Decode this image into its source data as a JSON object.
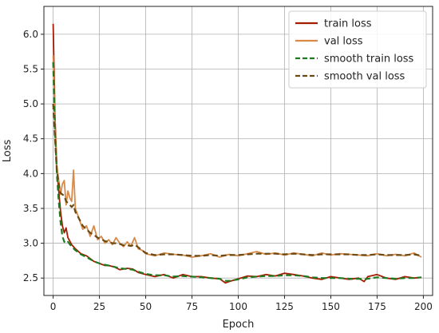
{
  "chart_data": {
    "type": "line",
    "title": "",
    "xlabel": "Epoch",
    "ylabel": "Loss",
    "xlim": [
      -5,
      205
    ],
    "ylim": [
      2.25,
      6.4
    ],
    "x_ticks": [
      0,
      25,
      50,
      75,
      100,
      125,
      150,
      175,
      200
    ],
    "y_ticks": [
      2.5,
      3.0,
      3.5,
      4.0,
      4.5,
      5.0,
      5.5,
      6.0
    ],
    "x_tick_labels": [
      "0",
      "25",
      "50",
      "75",
      "100",
      "125",
      "150",
      "175",
      "200"
    ],
    "y_tick_labels": [
      "2.5",
      "3.0",
      "3.5",
      "4.0",
      "4.5",
      "5.0",
      "5.5",
      "6.0"
    ],
    "grid": true,
    "legend_position": "top-right",
    "series": [
      {
        "name": "train loss",
        "color": "#a61c00",
        "style": "solid",
        "points": [
          [
            0,
            6.15
          ],
          [
            1,
            4.8
          ],
          [
            2,
            4.1
          ],
          [
            3,
            3.75
          ],
          [
            4,
            3.45
          ],
          [
            5,
            3.25
          ],
          [
            6,
            3.15
          ],
          [
            7,
            3.22
          ],
          [
            8,
            3.08
          ],
          [
            10,
            2.98
          ],
          [
            12,
            2.92
          ],
          [
            15,
            2.85
          ],
          [
            18,
            2.82
          ],
          [
            20,
            2.78
          ],
          [
            22,
            2.74
          ],
          [
            25,
            2.71
          ],
          [
            28,
            2.68
          ],
          [
            30,
            2.68
          ],
          [
            33,
            2.66
          ],
          [
            36,
            2.62
          ],
          [
            40,
            2.64
          ],
          [
            43,
            2.63
          ],
          [
            46,
            2.58
          ],
          [
            50,
            2.55
          ],
          [
            55,
            2.52
          ],
          [
            60,
            2.55
          ],
          [
            65,
            2.5
          ],
          [
            70,
            2.55
          ],
          [
            75,
            2.52
          ],
          [
            80,
            2.52
          ],
          [
            85,
            2.5
          ],
          [
            90,
            2.49
          ],
          [
            93,
            2.43
          ],
          [
            95,
            2.45
          ],
          [
            100,
            2.49
          ],
          [
            105,
            2.53
          ],
          [
            110,
            2.52
          ],
          [
            115,
            2.55
          ],
          [
            120,
            2.53
          ],
          [
            125,
            2.57
          ],
          [
            130,
            2.55
          ],
          [
            135,
            2.53
          ],
          [
            140,
            2.5
          ],
          [
            145,
            2.48
          ],
          [
            150,
            2.52
          ],
          [
            155,
            2.5
          ],
          [
            160,
            2.48
          ],
          [
            165,
            2.5
          ],
          [
            168,
            2.45
          ],
          [
            170,
            2.52
          ],
          [
            175,
            2.55
          ],
          [
            180,
            2.5
          ],
          [
            185,
            2.48
          ],
          [
            190,
            2.52
          ],
          [
            195,
            2.5
          ],
          [
            199,
            2.51
          ]
        ]
      },
      {
        "name": "val loss",
        "color": "#d78a4a",
        "style": "solid",
        "points": [
          [
            0,
            5.7
          ],
          [
            1,
            4.7
          ],
          [
            2,
            4.1
          ],
          [
            3,
            3.9
          ],
          [
            4,
            3.7
          ],
          [
            5,
            3.85
          ],
          [
            6,
            3.9
          ],
          [
            7,
            3.55
          ],
          [
            8,
            3.75
          ],
          [
            9,
            3.65
          ],
          [
            10,
            3.6
          ],
          [
            11,
            4.05
          ],
          [
            12,
            3.5
          ],
          [
            14,
            3.35
          ],
          [
            16,
            3.2
          ],
          [
            18,
            3.25
          ],
          [
            20,
            3.1
          ],
          [
            22,
            3.25
          ],
          [
            24,
            3.05
          ],
          [
            26,
            3.1
          ],
          [
            28,
            3.0
          ],
          [
            30,
            3.05
          ],
          [
            32,
            2.98
          ],
          [
            34,
            3.08
          ],
          [
            36,
            3.0
          ],
          [
            38,
            2.95
          ],
          [
            40,
            3.02
          ],
          [
            42,
            2.96
          ],
          [
            44,
            3.08
          ],
          [
            46,
            2.92
          ],
          [
            48,
            2.9
          ],
          [
            50,
            2.85
          ],
          [
            55,
            2.82
          ],
          [
            60,
            2.86
          ],
          [
            65,
            2.84
          ],
          [
            70,
            2.83
          ],
          [
            75,
            2.8
          ],
          [
            80,
            2.82
          ],
          [
            85,
            2.85
          ],
          [
            90,
            2.8
          ],
          [
            95,
            2.84
          ],
          [
            100,
            2.82
          ],
          [
            105,
            2.85
          ],
          [
            110,
            2.88
          ],
          [
            115,
            2.84
          ],
          [
            120,
            2.86
          ],
          [
            125,
            2.83
          ],
          [
            130,
            2.86
          ],
          [
            135,
            2.84
          ],
          [
            140,
            2.82
          ],
          [
            145,
            2.86
          ],
          [
            150,
            2.83
          ],
          [
            155,
            2.85
          ],
          [
            160,
            2.84
          ],
          [
            165,
            2.83
          ],
          [
            170,
            2.82
          ],
          [
            175,
            2.85
          ],
          [
            180,
            2.82
          ],
          [
            185,
            2.84
          ],
          [
            190,
            2.82
          ],
          [
            195,
            2.86
          ],
          [
            199,
            2.8
          ]
        ]
      },
      {
        "name": "smooth train loss",
        "color": "#1e7a1e",
        "style": "dashed",
        "points": [
          [
            0,
            5.6
          ],
          [
            1,
            4.6
          ],
          [
            2,
            4.0
          ],
          [
            3,
            3.6
          ],
          [
            4,
            3.3
          ],
          [
            5,
            3.1
          ],
          [
            6,
            3.02
          ],
          [
            7,
            3.0
          ],
          [
            8,
            3.02
          ],
          [
            10,
            2.95
          ],
          [
            12,
            2.9
          ],
          [
            15,
            2.84
          ],
          [
            18,
            2.8
          ],
          [
            20,
            2.77
          ],
          [
            22,
            2.74
          ],
          [
            25,
            2.71
          ],
          [
            28,
            2.69
          ],
          [
            30,
            2.68
          ],
          [
            33,
            2.66
          ],
          [
            36,
            2.64
          ],
          [
            40,
            2.63
          ],
          [
            43,
            2.62
          ],
          [
            46,
            2.59
          ],
          [
            50,
            2.56
          ],
          [
            55,
            2.54
          ],
          [
            60,
            2.54
          ],
          [
            65,
            2.52
          ],
          [
            70,
            2.53
          ],
          [
            75,
            2.52
          ],
          [
            80,
            2.51
          ],
          [
            85,
            2.5
          ],
          [
            90,
            2.49
          ],
          [
            93,
            2.46
          ],
          [
            95,
            2.46
          ],
          [
            100,
            2.48
          ],
          [
            105,
            2.51
          ],
          [
            110,
            2.52
          ],
          [
            115,
            2.53
          ],
          [
            120,
            2.53
          ],
          [
            125,
            2.54
          ],
          [
            130,
            2.54
          ],
          [
            135,
            2.53
          ],
          [
            140,
            2.51
          ],
          [
            145,
            2.5
          ],
          [
            150,
            2.5
          ],
          [
            155,
            2.5
          ],
          [
            160,
            2.49
          ],
          [
            165,
            2.49
          ],
          [
            168,
            2.48
          ],
          [
            170,
            2.49
          ],
          [
            175,
            2.51
          ],
          [
            180,
            2.5
          ],
          [
            185,
            2.49
          ],
          [
            190,
            2.5
          ],
          [
            195,
            2.5
          ],
          [
            199,
            2.51
          ]
        ]
      },
      {
        "name": "smooth val loss",
        "color": "#6b4a12",
        "style": "dashed",
        "points": [
          [
            0,
            5.0
          ],
          [
            1,
            4.5
          ],
          [
            2,
            4.05
          ],
          [
            3,
            3.85
          ],
          [
            4,
            3.72
          ],
          [
            5,
            3.7
          ],
          [
            6,
            3.68
          ],
          [
            7,
            3.6
          ],
          [
            8,
            3.58
          ],
          [
            9,
            3.55
          ],
          [
            10,
            3.52
          ],
          [
            11,
            3.55
          ],
          [
            12,
            3.45
          ],
          [
            14,
            3.35
          ],
          [
            16,
            3.25
          ],
          [
            18,
            3.2
          ],
          [
            20,
            3.15
          ],
          [
            22,
            3.12
          ],
          [
            24,
            3.08
          ],
          [
            26,
            3.06
          ],
          [
            28,
            3.03
          ],
          [
            30,
            3.02
          ],
          [
            32,
            3.0
          ],
          [
            34,
            3.0
          ],
          [
            36,
            2.99
          ],
          [
            38,
            2.97
          ],
          [
            40,
            2.97
          ],
          [
            42,
            2.96
          ],
          [
            44,
            2.98
          ],
          [
            46,
            2.94
          ],
          [
            48,
            2.9
          ],
          [
            50,
            2.86
          ],
          [
            55,
            2.83
          ],
          [
            60,
            2.84
          ],
          [
            65,
            2.84
          ],
          [
            70,
            2.83
          ],
          [
            75,
            2.82
          ],
          [
            80,
            2.82
          ],
          [
            85,
            2.83
          ],
          [
            90,
            2.82
          ],
          [
            95,
            2.83
          ],
          [
            100,
            2.83
          ],
          [
            105,
            2.84
          ],
          [
            110,
            2.85
          ],
          [
            115,
            2.85
          ],
          [
            120,
            2.85
          ],
          [
            125,
            2.84
          ],
          [
            130,
            2.85
          ],
          [
            135,
            2.84
          ],
          [
            140,
            2.83
          ],
          [
            145,
            2.84
          ],
          [
            150,
            2.84
          ],
          [
            155,
            2.84
          ],
          [
            160,
            2.84
          ],
          [
            165,
            2.83
          ],
          [
            170,
            2.83
          ],
          [
            175,
            2.84
          ],
          [
            180,
            2.83
          ],
          [
            185,
            2.83
          ],
          [
            190,
            2.83
          ],
          [
            195,
            2.84
          ],
          [
            199,
            2.82
          ]
        ]
      }
    ]
  }
}
